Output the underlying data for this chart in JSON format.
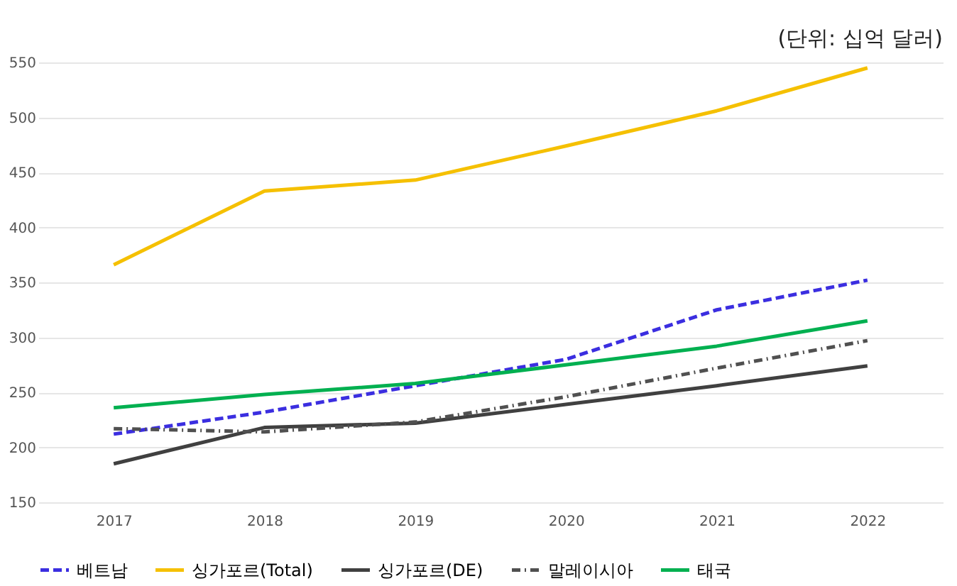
{
  "chart_data": {
    "type": "line",
    "annotations": [
      "(단위: 십억 달러)"
    ],
    "categories": [
      "2017",
      "2018",
      "2019",
      "2020",
      "2021",
      "2022"
    ],
    "series": [
      {
        "name": "베트남",
        "color": "#3b2ee0",
        "line_style": "dashed",
        "values": [
          212,
          232,
          256,
          280,
          325,
          352
        ]
      },
      {
        "name": "싱가포르(Total)",
        "color": "#f5c000",
        "line_style": "solid",
        "values": [
          366,
          433,
          443,
          474,
          506,
          545
        ]
      },
      {
        "name": "싱가포르(DE)",
        "color": "#404040",
        "line_style": "solid",
        "values": [
          185,
          218,
          222,
          239,
          256,
          274
        ]
      },
      {
        "name": "말레이시아",
        "color": "#505050",
        "line_style": "dotted",
        "values": [
          217,
          214,
          223,
          246,
          272,
          297
        ]
      },
      {
        "name": "태국",
        "color": "#00b050",
        "line_style": "solid",
        "values": [
          236,
          248,
          258,
          275,
          292,
          315
        ]
      }
    ],
    "ylim": [
      150,
      550
    ],
    "yticks": [
      150,
      200,
      250,
      300,
      350,
      400,
      450,
      500,
      550
    ],
    "grid": "y",
    "legend": "bottom",
    "marker": "none"
  }
}
